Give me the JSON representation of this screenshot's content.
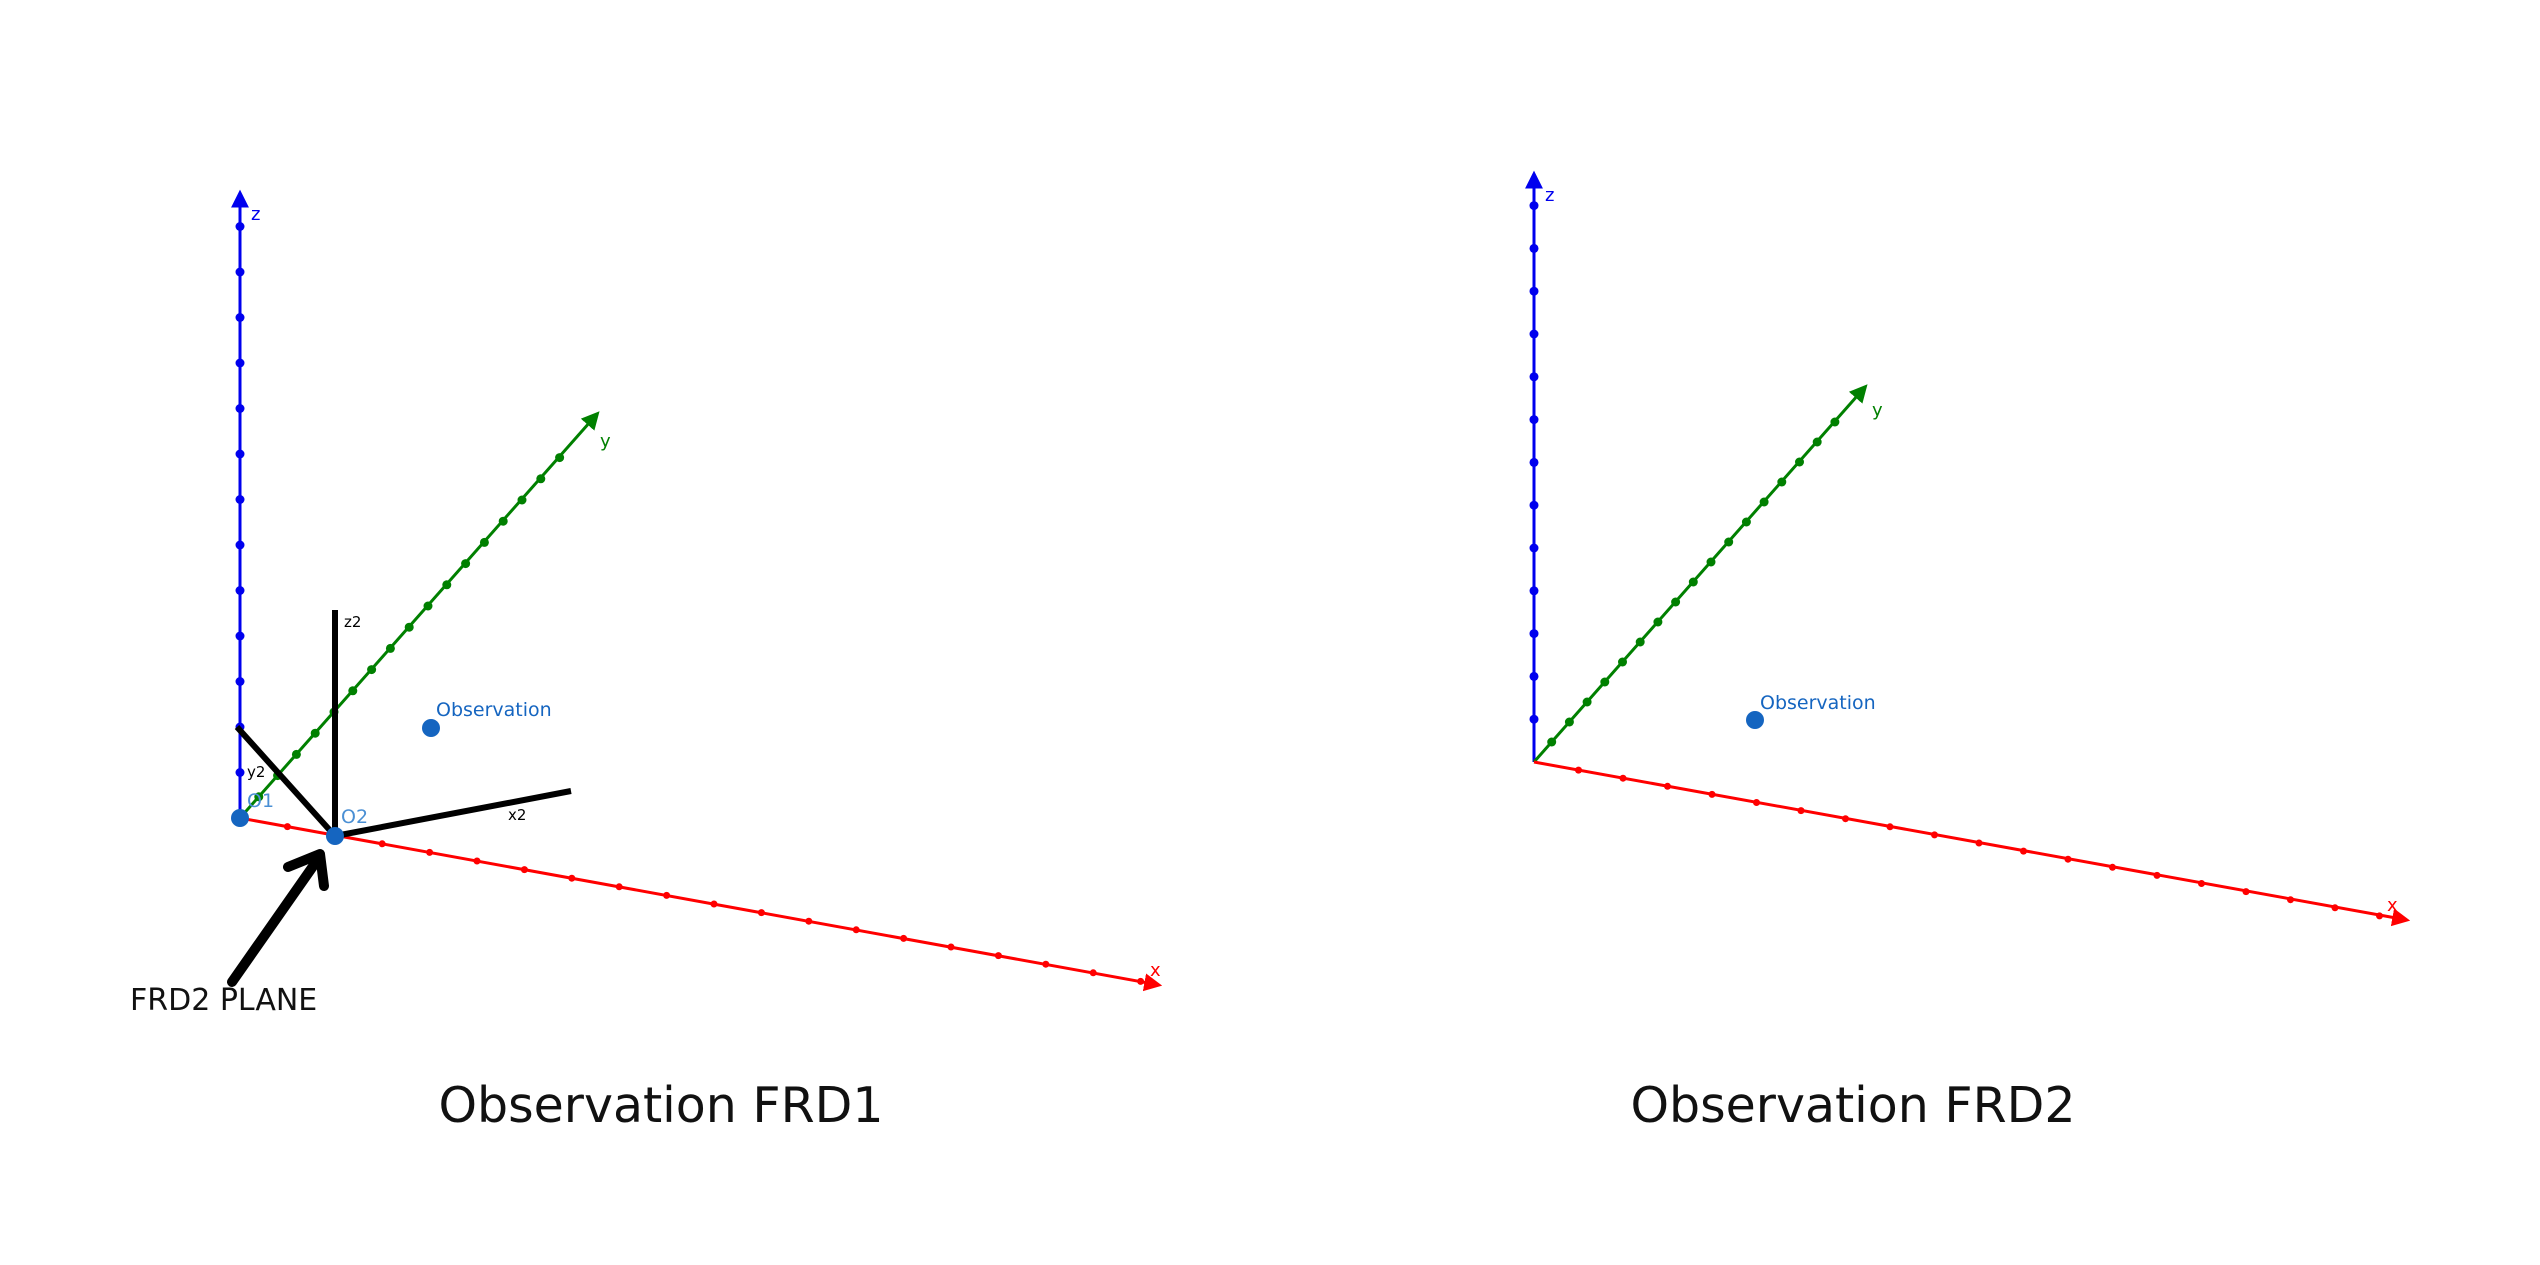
{
  "colors": {
    "x_axis": "#ff0000",
    "y_axis": "#008000",
    "z_axis": "#0000ee",
    "point": "#1565c0",
    "frame2": "#000000"
  },
  "panels": [
    {
      "caption": "Observation FRD1",
      "axes": {
        "x": "x",
        "y": "y",
        "z": "z"
      },
      "frame2_axes": {
        "x": "x2",
        "y": "y2",
        "z": "z2"
      },
      "points": [
        {
          "label": "O1"
        },
        {
          "label": "O2"
        },
        {
          "label": "Observation"
        }
      ],
      "annotation": "FRD2 PLANE"
    },
    {
      "caption": "Observation FRD2",
      "axes": {
        "x": "x",
        "y": "y",
        "z": "z"
      },
      "points": [
        {
          "label": "Observation"
        }
      ]
    }
  ]
}
